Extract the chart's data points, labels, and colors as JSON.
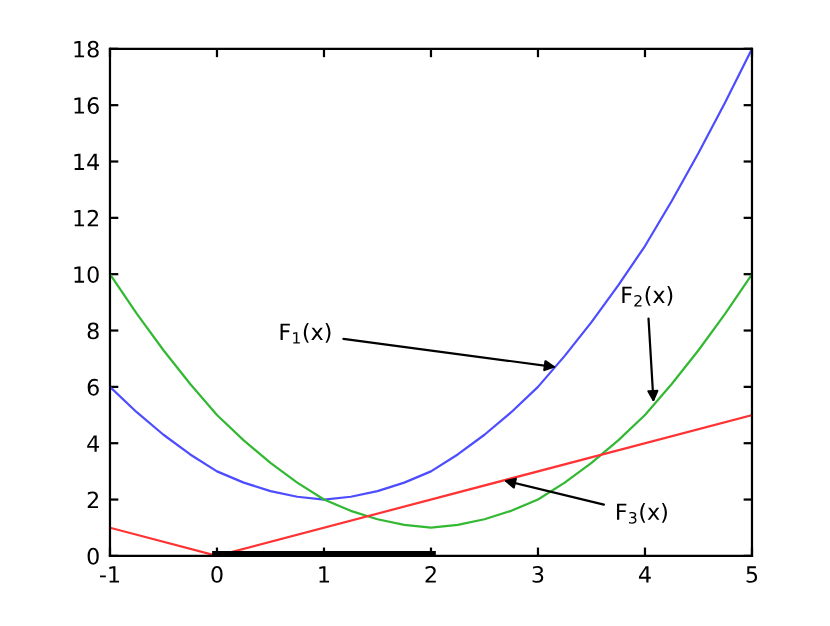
{
  "chart_data": {
    "type": "line",
    "x": [
      -1,
      -0.75,
      -0.5,
      -0.25,
      0,
      0.25,
      0.5,
      0.75,
      1,
      1.25,
      1.5,
      1.75,
      2,
      2.25,
      2.5,
      2.75,
      3,
      3.25,
      3.5,
      3.75,
      4,
      4.25,
      4.5,
      4.75,
      5
    ],
    "series": [
      {
        "color": "#4d4dff",
        "values": [
          6,
          5.1,
          4.3,
          3.6,
          3,
          2.6,
          2.3,
          2.1,
          2,
          2.1,
          2.3,
          2.6,
          3,
          3.6,
          4.3,
          5.1,
          6,
          7.1,
          8.3,
          9.6,
          11,
          12.6,
          14.3,
          16.1,
          18
        ]
      },
      {
        "color": "#33b833",
        "values": [
          10,
          8.6,
          7.3,
          6.1,
          5,
          4.1,
          3.3,
          2.6,
          2,
          1.6,
          1.3,
          1.1,
          1,
          1.1,
          1.3,
          1.6,
          2,
          2.6,
          3.3,
          4.1,
          5,
          6.1,
          7.3,
          8.6,
          10
        ]
      },
      {
        "color": "#ff3333",
        "x": [
          -1,
          0,
          5
        ],
        "values": [
          1,
          0,
          5
        ]
      },
      {
        "color": "#000000",
        "x": [
          0,
          2
        ],
        "values": [
          0,
          0
        ]
      }
    ],
    "annotations": [
      {
        "text": "F$_{1}$(x)",
        "x": 3.17,
        "y": 6.7
      },
      {
        "text": "F$_{2}$(x)",
        "x": 4.08,
        "y": 5.45
      },
      {
        "text": "F$_{3}$(x)",
        "x": 2.68,
        "y": 2.68
      }
    ],
    "xlim": [
      -1,
      5
    ],
    "ylim": [
      0,
      18
    ],
    "xticks": [
      -1,
      0,
      1,
      2,
      3,
      4,
      5
    ],
    "yticks": [
      0,
      2,
      4,
      6,
      8,
      10,
      12,
      14,
      16,
      18
    ],
    "grid": false
  }
}
